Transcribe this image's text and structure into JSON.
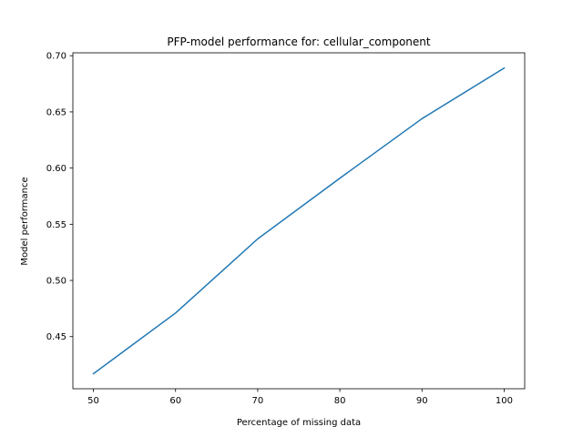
{
  "chart_data": {
    "type": "line",
    "title": "PFP-model performance for: cellular_component",
    "xlabel": "Percentage of missing data",
    "ylabel": "Model performance",
    "x": [
      50,
      60,
      70,
      80,
      90,
      100
    ],
    "series": [
      {
        "values": [
          0.417,
          0.471,
          0.537,
          0.591,
          0.644,
          0.689
        ],
        "color": "#1f77b4"
      }
    ],
    "xlim": [
      47.5,
      102.5
    ],
    "ylim": [
      0.4036,
      0.7026
    ],
    "xticks": [
      50,
      60,
      70,
      80,
      90,
      100
    ],
    "yticks": [
      0.45,
      0.5,
      0.55,
      0.6,
      0.65,
      0.7
    ],
    "ytick_labels": [
      "0.45",
      "0.50",
      "0.55",
      "0.60",
      "0.65",
      "0.70"
    ],
    "grid": false,
    "legend": "none"
  }
}
